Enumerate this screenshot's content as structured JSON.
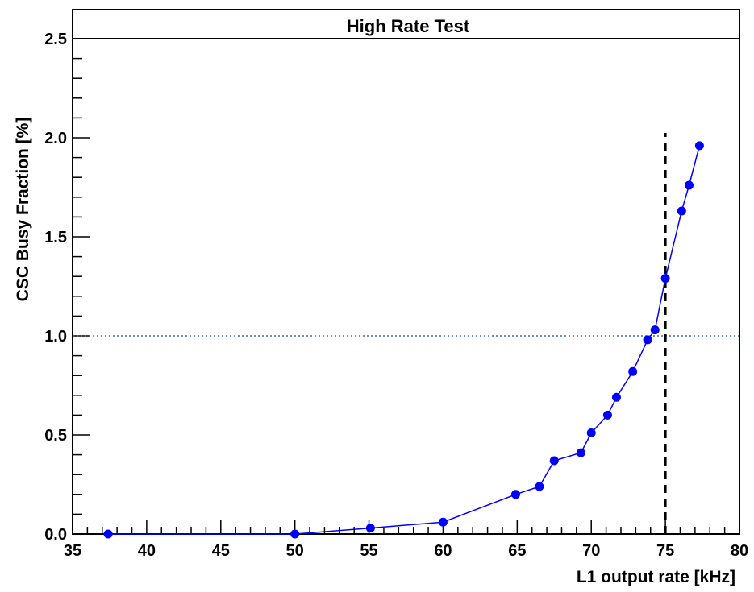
{
  "chart_data": {
    "type": "line",
    "title": "High Rate Test",
    "xlabel": "L1 output rate [kHz]",
    "ylabel": "CSC Busy Fraction [%]",
    "xlim": [
      35,
      80
    ],
    "ylim": [
      0,
      2.5
    ],
    "x_ticks": [
      "35",
      "40",
      "45",
      "50",
      "55",
      "60",
      "65",
      "70",
      "75",
      "80"
    ],
    "y_ticks": [
      "0.0",
      "0.5",
      "1.0",
      "1.5",
      "2.0",
      "2.5"
    ],
    "grid": false,
    "legend": "none",
    "reference_lines": [
      {
        "orientation": "horizontal",
        "value": 1.0,
        "style": "dotted",
        "color": "#3a6fb0"
      },
      {
        "orientation": "vertical",
        "value": 75,
        "style": "dashed",
        "color": "#000000"
      }
    ],
    "series": [
      {
        "color": "#0000ff",
        "x": [
          37.4,
          50.0,
          55.1,
          60.0,
          64.9,
          66.5,
          67.5,
          69.3,
          70.0,
          71.1,
          71.7,
          72.8,
          73.8,
          74.3,
          75.0,
          76.1,
          76.6,
          77.3
        ],
        "values": [
          0.0,
          0.0,
          0.03,
          0.06,
          0.2,
          0.24,
          0.37,
          0.41,
          0.51,
          0.6,
          0.69,
          0.82,
          0.98,
          1.03,
          1.29,
          1.63,
          1.76,
          1.96
        ]
      }
    ]
  }
}
